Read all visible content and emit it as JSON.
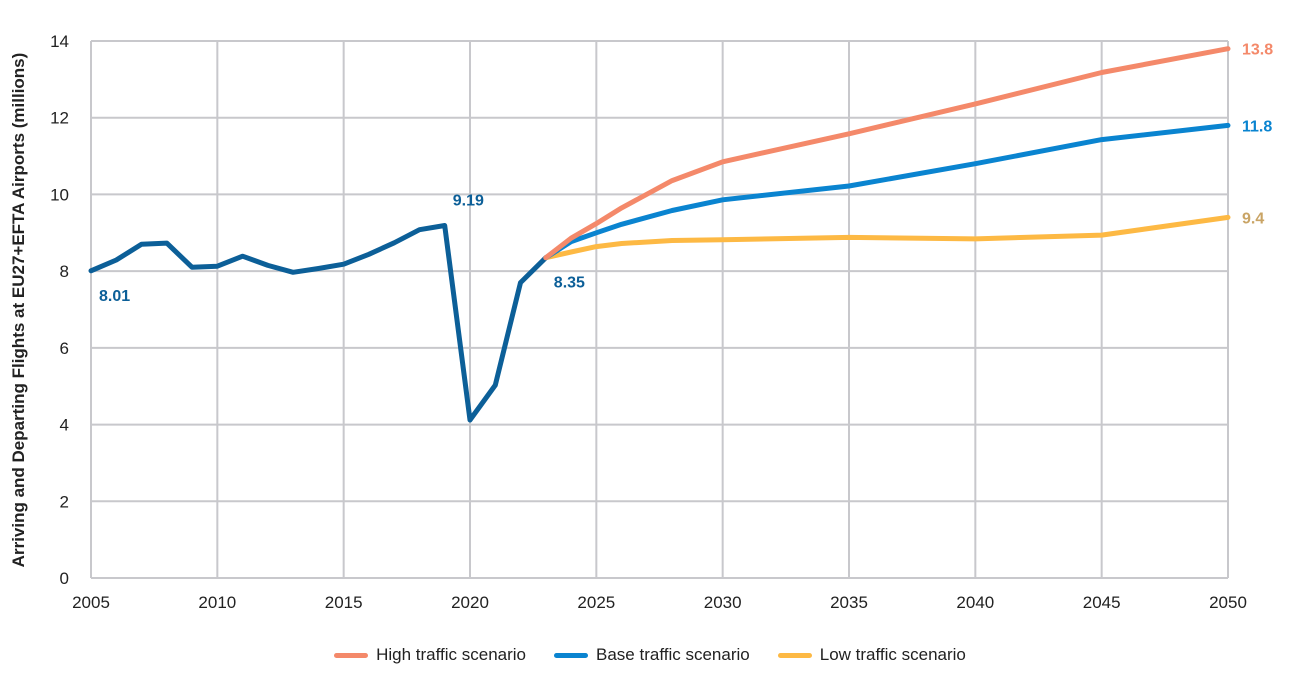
{
  "chart_data": {
    "type": "line",
    "title": "",
    "xlabel": "",
    "ylabel": "Arriving and Departing Flights at EU27+EFTA Airports (millions)",
    "xlim": [
      2005,
      2050
    ],
    "ylim": [
      0,
      14
    ],
    "x_ticks": [
      2005,
      2010,
      2015,
      2020,
      2025,
      2030,
      2035,
      2040,
      2045,
      2050
    ],
    "y_ticks": [
      0,
      2,
      4,
      6,
      8,
      10,
      12,
      14
    ],
    "grid": true,
    "legend_position": "bottom-center",
    "series": [
      {
        "name": "Historical",
        "color": "#0c5f98",
        "in_legend": false,
        "x": [
          2005,
          2006,
          2007,
          2008,
          2009,
          2010,
          2011,
          2012,
          2013,
          2014,
          2015,
          2016,
          2017,
          2018,
          2019,
          2020,
          2021,
          2022,
          2023
        ],
        "values": [
          8.01,
          8.29,
          8.7,
          8.73,
          8.1,
          8.13,
          8.39,
          8.15,
          7.97,
          8.07,
          8.18,
          8.44,
          8.74,
          9.08,
          9.19,
          4.12,
          5.03,
          7.7,
          8.35
        ]
      },
      {
        "name": "Low traffic scenario",
        "color": "#fdb944",
        "in_legend": true,
        "x": [
          2023,
          2024,
          2025,
          2026,
          2028,
          2030,
          2035,
          2040,
          2045,
          2050
        ],
        "values": [
          8.35,
          8.5,
          8.64,
          8.72,
          8.8,
          8.82,
          8.88,
          8.84,
          8.94,
          9.4
        ]
      },
      {
        "name": "Base traffic scenario",
        "color": "#0a84d0",
        "in_legend": true,
        "x": [
          2023,
          2024,
          2025,
          2026,
          2028,
          2030,
          2035,
          2040,
          2045,
          2050
        ],
        "values": [
          8.35,
          8.77,
          9.0,
          9.22,
          9.58,
          9.86,
          10.22,
          10.8,
          11.43,
          11.8
        ]
      },
      {
        "name": "High traffic scenario",
        "color": "#f4896a",
        "in_legend": true,
        "x": [
          2023,
          2024,
          2025,
          2026,
          2028,
          2030,
          2035,
          2040,
          2045,
          2050
        ],
        "values": [
          8.35,
          8.86,
          9.24,
          9.65,
          10.36,
          10.85,
          11.58,
          12.36,
          13.18,
          13.8
        ]
      }
    ],
    "annotations": [
      {
        "text": "8.01",
        "x": 2005,
        "y": 8.01,
        "color": "#0c5f98",
        "placement": "below-right"
      },
      {
        "text": "9.19",
        "x": 2019,
        "y": 9.19,
        "color": "#0c5f98",
        "placement": "above-right"
      },
      {
        "text": "8.35",
        "x": 2023,
        "y": 8.35,
        "color": "#0c5f98",
        "placement": "below-right"
      },
      {
        "text": "13.8",
        "x": 2050,
        "y": 13.8,
        "color": "#f4896a",
        "placement": "right"
      },
      {
        "text": "11.8",
        "x": 2050,
        "y": 11.8,
        "color": "#0a84d0",
        "placement": "right"
      },
      {
        "text": "9.4",
        "x": 2050,
        "y": 9.4,
        "color": "#c9a465",
        "placement": "right"
      }
    ],
    "legend": [
      {
        "label": "High traffic scenario",
        "color": "#f4896a"
      },
      {
        "label": "Base traffic scenario",
        "color": "#0a84d0"
      },
      {
        "label": "Low traffic scenario",
        "color": "#fdb944"
      }
    ]
  }
}
